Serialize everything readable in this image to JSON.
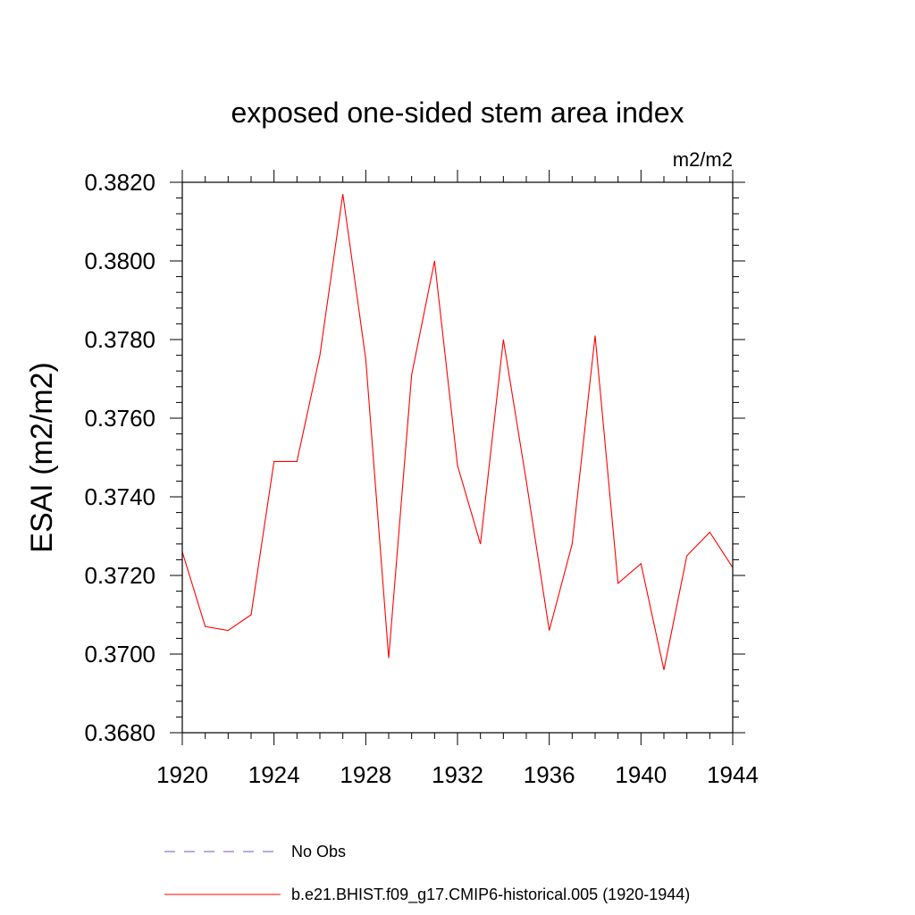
{
  "chart_data": {
    "type": "line",
    "title": "exposed one-sided stem area index",
    "units_label": "m2/m2",
    "ylabel": "ESAI  (m2/m2)",
    "xlabel": "",
    "xlim": [
      1920,
      1944
    ],
    "ylim": [
      0.368,
      0.382
    ],
    "x_ticks": [
      "1920",
      "1924",
      "1928",
      "1932",
      "1936",
      "1940",
      "1944"
    ],
    "x_tick_values": [
      1920,
      1924,
      1928,
      1932,
      1936,
      1940,
      1944
    ],
    "y_ticks": [
      "0.3680",
      "0.3700",
      "0.3720",
      "0.3740",
      "0.3760",
      "0.3780",
      "0.3800",
      "0.3820"
    ],
    "y_tick_values": [
      0.368,
      0.37,
      0.372,
      0.374,
      0.376,
      0.378,
      0.38,
      0.382
    ],
    "series": [
      {
        "name": "b.e21.BHIST.f09_g17.CMIP6-historical.005 (1920-1944)",
        "color": "#ff0000",
        "x": [
          1920,
          1921,
          1922,
          1923,
          1924,
          1925,
          1926,
          1927,
          1928,
          1929,
          1930,
          1931,
          1932,
          1933,
          1934,
          1935,
          1936,
          1937,
          1938,
          1939,
          1940,
          1941,
          1942,
          1943,
          1944
        ],
        "values": [
          0.3726,
          0.3707,
          0.3706,
          0.371,
          0.3749,
          0.3749,
          0.3776,
          0.3817,
          0.3775,
          0.3699,
          0.3771,
          0.38,
          0.3748,
          0.3728,
          0.378,
          0.3744,
          0.3706,
          0.3728,
          0.3781,
          0.3718,
          0.3723,
          0.3696,
          0.3725,
          0.3731,
          0.3722
        ]
      }
    ],
    "legend": [
      {
        "label": "No Obs",
        "color": "#6a5acd",
        "style": "dashed"
      },
      {
        "label": "b.e21.BHIST.f09_g17.CMIP6-historical.005 (1920-1944)",
        "color": "#ff0000",
        "style": "solid"
      }
    ]
  }
}
